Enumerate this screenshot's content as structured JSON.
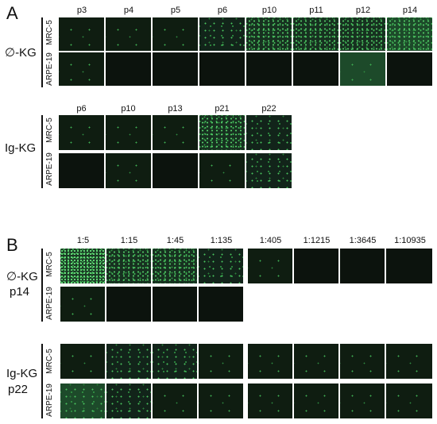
{
  "panelA": {
    "letter": "A",
    "section1": {
      "group_label": "∅-KG",
      "columns": [
        "p3",
        "p4",
        "p5",
        "p6",
        "p10",
        "p11",
        "p12",
        "p14"
      ],
      "rows": [
        "MRC-5",
        "ARPE-19"
      ]
    },
    "section2": {
      "group_label": "Ig-KG",
      "columns": [
        "p6",
        "p10",
        "p13",
        "p21",
        "p22"
      ],
      "rows": [
        "MRC-5",
        "ARPE-19"
      ]
    }
  },
  "panelB": {
    "letter": "B",
    "columns": [
      "1:5",
      "1:15",
      "1:45",
      "1:135",
      "1:405",
      "1:1215",
      "1:3645",
      "1:10935"
    ],
    "section1": {
      "group_label_line1": "∅-KG",
      "group_label_line2": "p14",
      "rows": [
        "MRC-5",
        "ARPE-19"
      ]
    },
    "section2": {
      "group_label_line1": "Ig-KG",
      "group_label_line2": "p22",
      "rows": [
        "MRC-5",
        "ARPE-19"
      ]
    }
  }
}
